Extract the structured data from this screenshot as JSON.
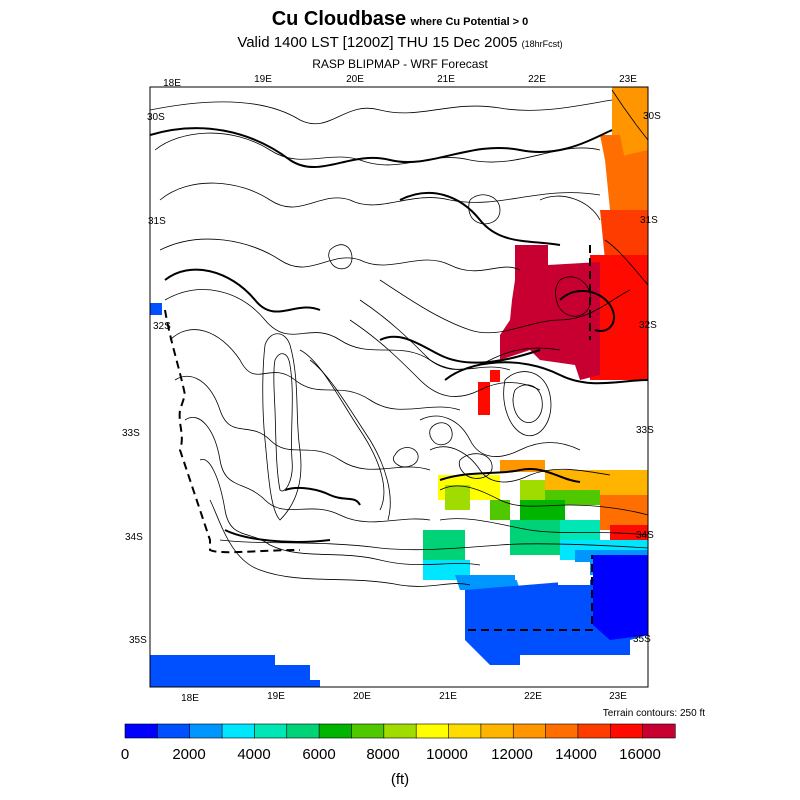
{
  "title": {
    "main": "Cu Cloudbase",
    "qualifier": "where Cu Potential > 0",
    "valid": "Valid 1400 LST [1200Z] THU 15 Dec 2005",
    "forecast_hours": "(18hrFcst)",
    "source": "RASP BLIPMAP - WRF Forecast"
  },
  "axes": {
    "top_lon": [
      "18E",
      "19E",
      "20E",
      "21E",
      "22E",
      "23E"
    ],
    "bottom_lon": [
      "18E",
      "19E",
      "20E",
      "21E",
      "22E",
      "23E"
    ],
    "left_lat": [
      "30S",
      "31S",
      "32S",
      "33S",
      "34S",
      "35S"
    ],
    "right_lat": [
      "30S",
      "31S",
      "32S",
      "33S",
      "34S",
      "35S"
    ]
  },
  "terrain_note": "Terrain contours: 250 ft",
  "colorbar": {
    "colors": [
      "#0000ff",
      "#0050ff",
      "#0096ff",
      "#00e6ff",
      "#00e6b4",
      "#00d278",
      "#00b400",
      "#50c800",
      "#a0dc00",
      "#ffff00",
      "#ffdc00",
      "#ffb400",
      "#ff9600",
      "#ff6e00",
      "#ff3c00",
      "#ff0a00",
      "#c80032"
    ],
    "tick_labels": [
      "0",
      "2000",
      "4000",
      "6000",
      "8000",
      "10000",
      "12000",
      "14000",
      "16000"
    ],
    "unit": "(ft)"
  }
}
